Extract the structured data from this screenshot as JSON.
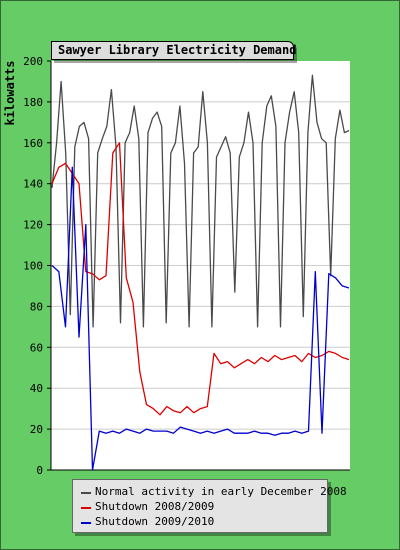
{
  "chart_data": {
    "type": "line",
    "title": "Sawyer Library Electricity Demand",
    "ylabel": "kilowatts",
    "xlabel": "",
    "ylim": [
      0,
      200
    ],
    "yticks": [
      0,
      20,
      40,
      60,
      80,
      100,
      120,
      140,
      160,
      180,
      200
    ],
    "grid": true,
    "legend_position": "bottom",
    "series": [
      {
        "name": "Normal activity in early December 2008",
        "color": "#4a4a4a",
        "values": [
          138,
          160,
          190,
          155,
          76,
          158,
          168,
          170,
          162,
          70,
          155,
          162,
          168,
          186,
          158,
          72,
          160,
          165,
          178,
          162,
          70,
          165,
          172,
          175,
          168,
          72,
          155,
          160,
          178,
          150,
          70,
          155,
          158,
          185,
          160,
          70,
          153,
          158,
          163,
          155,
          87,
          153,
          160,
          175,
          160,
          70,
          160,
          178,
          183,
          168,
          70,
          160,
          175,
          185,
          165,
          75,
          165,
          193,
          170,
          162,
          160,
          95,
          162,
          176,
          165,
          166
        ]
      },
      {
        "name": "Shutdown 2008/2009",
        "color": "#dd0000",
        "values": [
          140,
          148,
          150,
          145,
          140,
          97,
          96,
          93,
          95,
          155,
          160,
          94,
          82,
          48,
          32,
          30,
          27,
          31,
          29,
          28,
          31,
          28,
          30,
          31,
          57,
          52,
          53,
          50,
          52,
          54,
          52,
          55,
          53,
          56,
          54,
          55,
          56,
          53,
          57,
          55,
          56,
          58,
          57,
          55,
          54
        ]
      },
      {
        "name": "Shutdown 2009/2010",
        "color": "#0000cc",
        "values": [
          100,
          97,
          70,
          148,
          65,
          120,
          0,
          19,
          18,
          19,
          18,
          20,
          19,
          18,
          20,
          19,
          19,
          19,
          18,
          21,
          20,
          19,
          18,
          19,
          18,
          19,
          20,
          18,
          18,
          18,
          19,
          18,
          18,
          17,
          18,
          18,
          19,
          18,
          19,
          97,
          18,
          96,
          94,
          90,
          89
        ]
      }
    ]
  }
}
